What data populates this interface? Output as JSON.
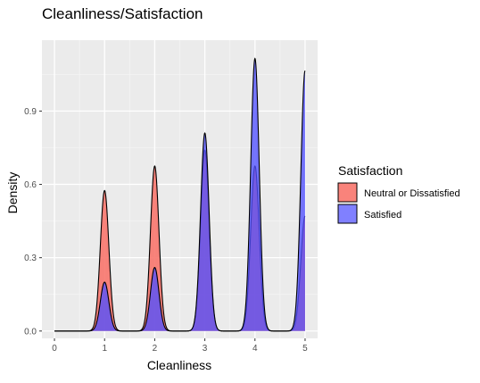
{
  "chart_data": {
    "type": "area",
    "title": "Cleanliness/Satisfaction",
    "xlabel": "Cleanliness",
    "ylabel": "Density",
    "xlim": [
      -0.25,
      5.25
    ],
    "ylim": [
      -0.03,
      1.19
    ],
    "x_ticks": [
      "0",
      "1",
      "2",
      "3",
      "4",
      "5"
    ],
    "y_ticks": [
      "0.0",
      "0.3",
      "0.6",
      "0.9"
    ],
    "y_tick_values": [
      0.0,
      0.3,
      0.6,
      0.9
    ],
    "grid": true,
    "legend": {
      "title": "Satisfaction",
      "position": "right"
    },
    "series": [
      {
        "name": "Neutral or Dissatisfied",
        "color": "#F8766D",
        "peaks": [
          {
            "x": 1,
            "density": 0.575
          },
          {
            "x": 2,
            "density": 0.675
          },
          {
            "x": 3,
            "density": 0.74
          },
          {
            "x": 4,
            "density": 0.675
          },
          {
            "x": 5,
            "density": 0.47
          }
        ]
      },
      {
        "name": "Satisfied",
        "color": "#0000FF",
        "peaks": [
          {
            "x": 1,
            "density": 0.2
          },
          {
            "x": 2,
            "density": 0.26
          },
          {
            "x": 3,
            "density": 0.81
          },
          {
            "x": 4,
            "density": 1.115
          },
          {
            "x": 5,
            "density": 1.065
          }
        ]
      }
    ]
  }
}
